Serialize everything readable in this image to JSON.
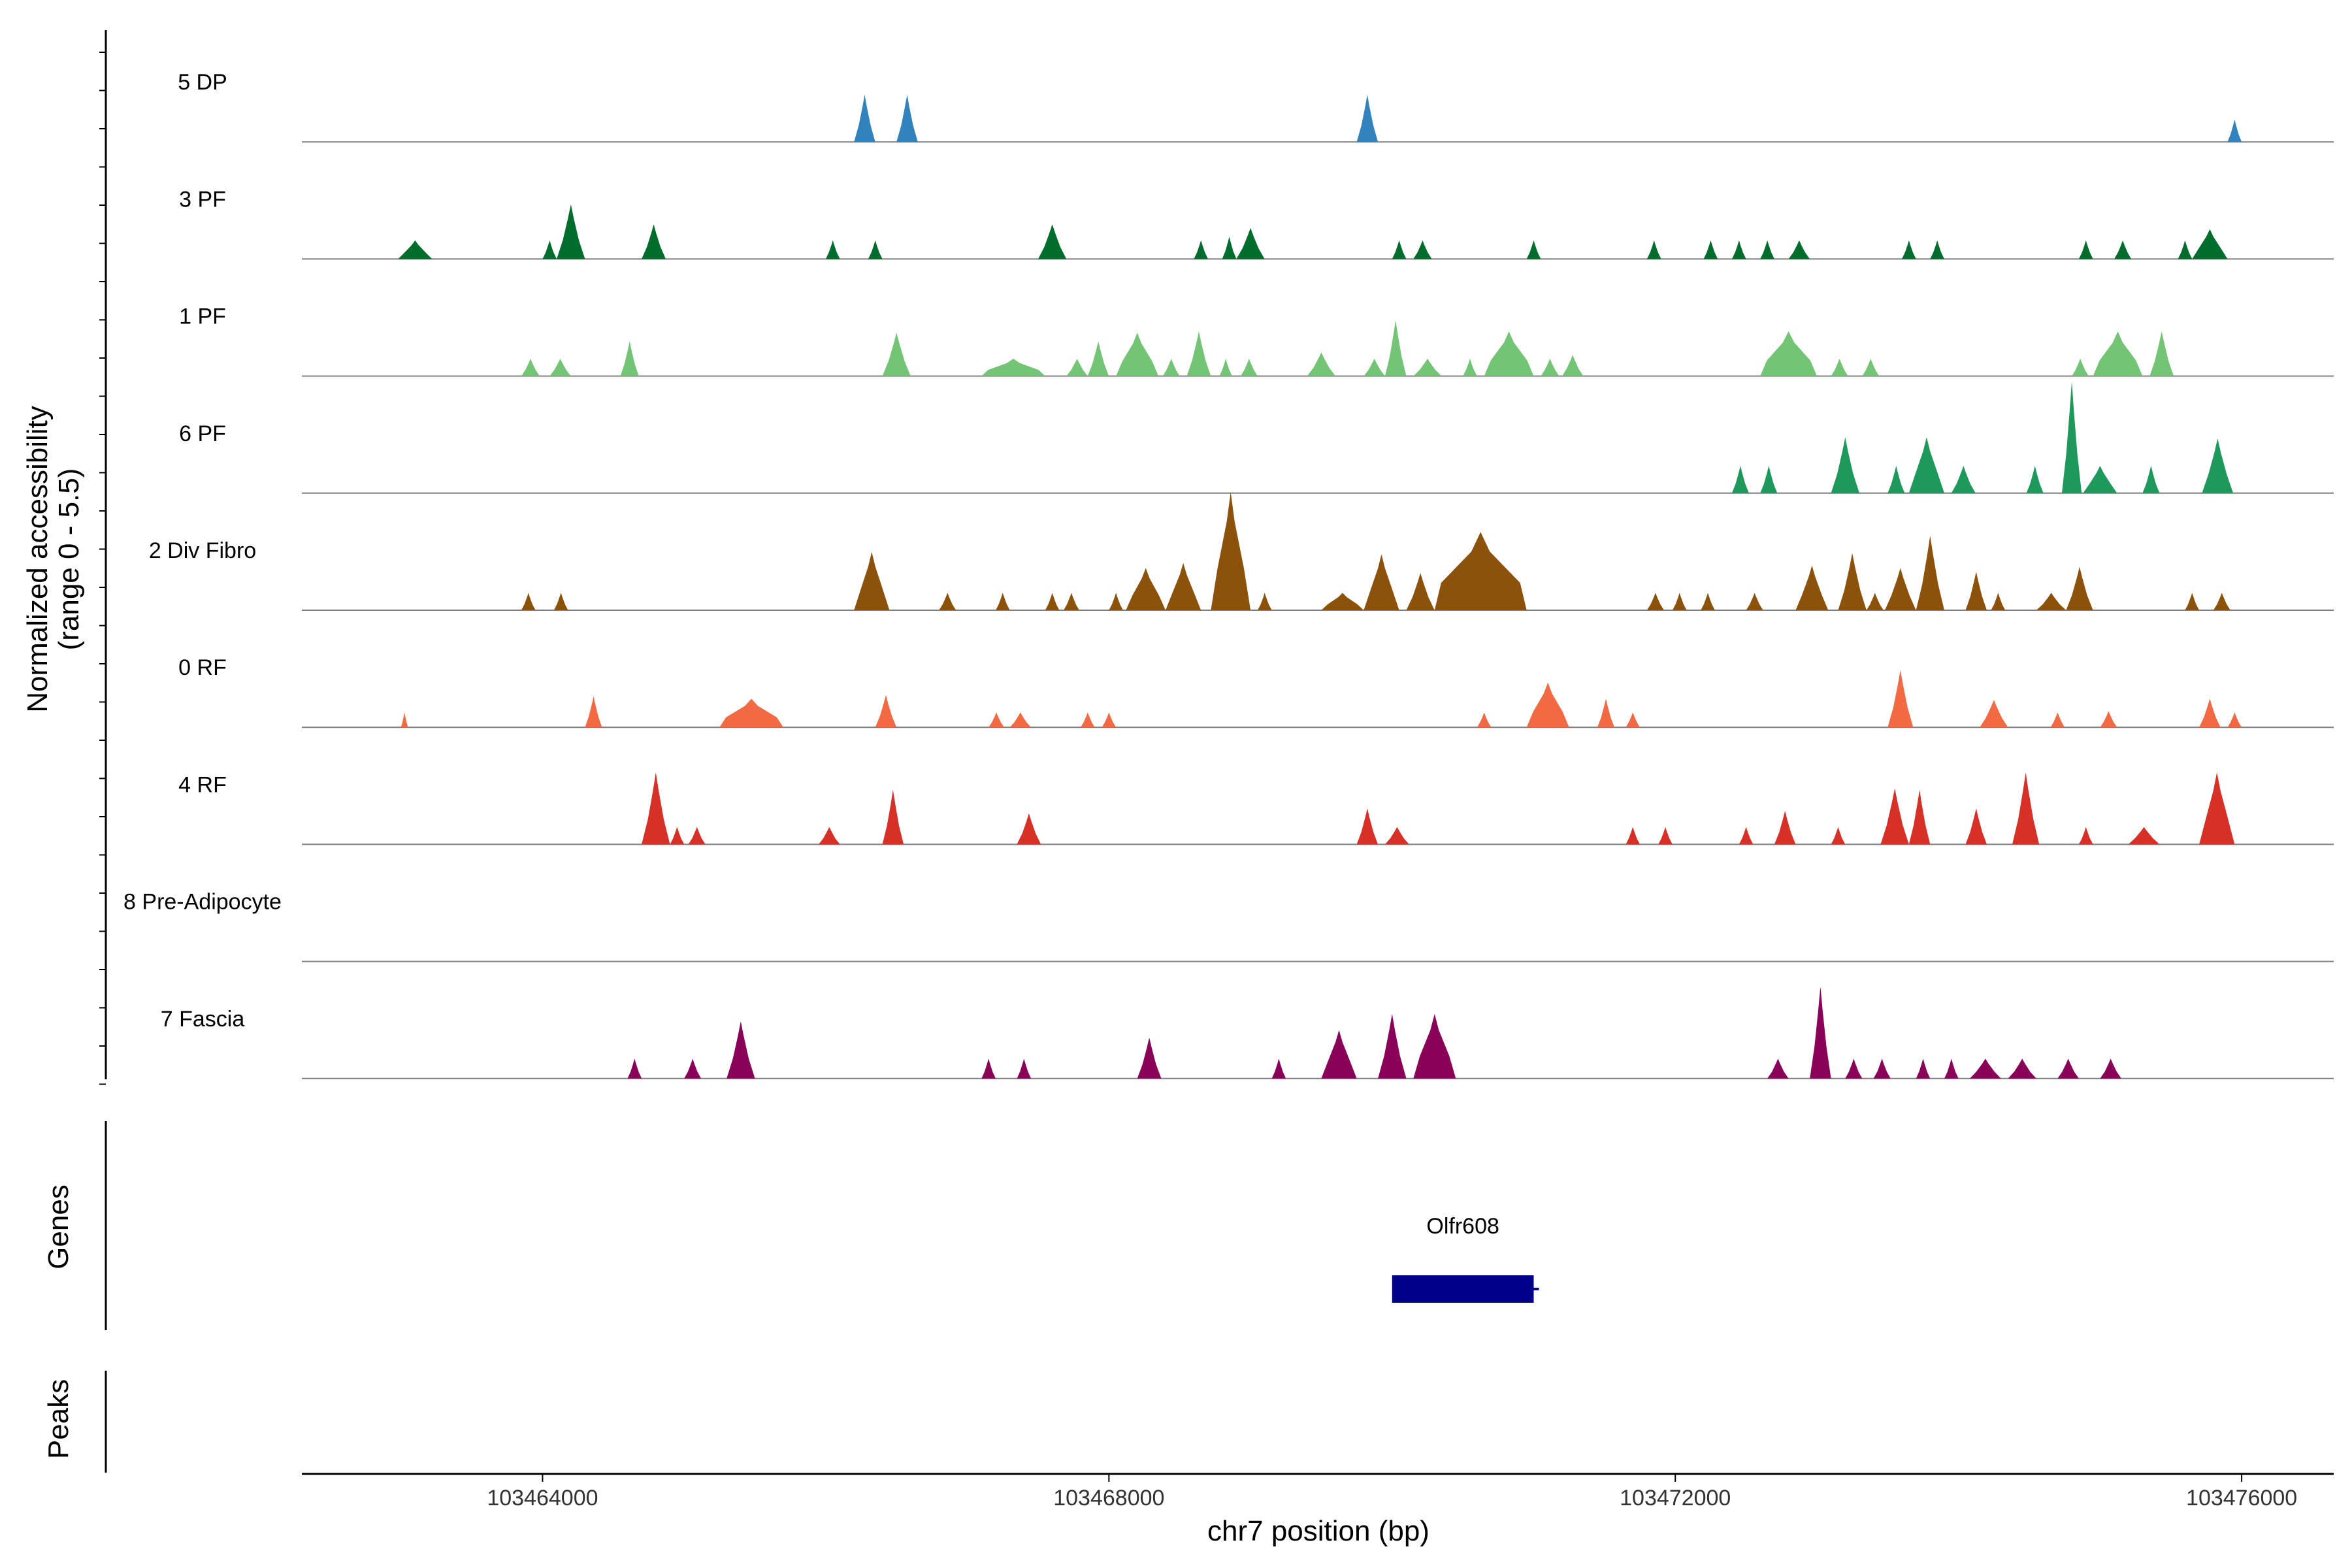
{
  "chart_data": {
    "type": "area",
    "title": "",
    "ylabel_line1": "Normalized accessibility",
    "ylabel_line2": "(range 0 - 5.5)",
    "ylim": [
      0,
      5.5
    ],
    "xlabel": "chr7 position (bp)",
    "xlim": [
      103462300,
      103476650
    ],
    "xticks": [
      {
        "value": 103464000,
        "label": "103464000"
      },
      {
        "value": 103468000,
        "label": "103468000"
      },
      {
        "value": 103472000,
        "label": "103472000"
      },
      {
        "value": 103476000,
        "label": "103476000"
      }
    ],
    "tracks": [
      {
        "name": "5 DP",
        "color": "#3282bd",
        "peaks": [
          [
            103466200,
            103466350,
            3.8
          ],
          [
            103466500,
            103466650,
            3.8
          ],
          [
            103469750,
            103469900,
            3.8
          ],
          [
            103475900,
            103476000,
            1.8
          ]
        ]
      },
      {
        "name": "3 PF",
        "color": "#006d2c",
        "peaks": [
          [
            103462980,
            103463220,
            1.5
          ],
          [
            103464000,
            103464100,
            1.5
          ],
          [
            103464100,
            103464300,
            4.4
          ],
          [
            103464700,
            103464870,
            2.8
          ],
          [
            103466000,
            103466100,
            1.5
          ],
          [
            103466300,
            103466400,
            1.5
          ],
          [
            103467500,
            103467700,
            2.8
          ],
          [
            103468600,
            103468700,
            1.5
          ],
          [
            103468800,
            103468900,
            1.8
          ],
          [
            103468900,
            103469100,
            2.5
          ],
          [
            103470000,
            103470100,
            1.5
          ],
          [
            103470150,
            103470280,
            1.5
          ],
          [
            103470950,
            103471050,
            1.5
          ],
          [
            103471800,
            103471900,
            1.5
          ],
          [
            103472200,
            103472300,
            1.5
          ],
          [
            103472400,
            103472500,
            1.5
          ],
          [
            103472600,
            103472700,
            1.5
          ],
          [
            103472800,
            103472950,
            1.5
          ],
          [
            103473600,
            103473700,
            1.5
          ],
          [
            103473800,
            103473900,
            1.5
          ],
          [
            103474850,
            103474950,
            1.5
          ],
          [
            103475100,
            103475220,
            1.5
          ],
          [
            103475550,
            103475650,
            1.5
          ],
          [
            103475650,
            103475900,
            2.4
          ]
        ]
      },
      {
        "name": "1 PF",
        "color": "#74c476",
        "peaks": [
          [
            103463850,
            103463980,
            1.4
          ],
          [
            103464050,
            103464200,
            1.4
          ],
          [
            103464550,
            103464680,
            2.8
          ],
          [
            103466400,
            103466600,
            3.5
          ],
          [
            103467100,
            103467550,
            1.4
          ],
          [
            103467700,
            103467850,
            1.4
          ],
          [
            103467850,
            103468000,
            2.8
          ],
          [
            103468050,
            103468350,
            3.5
          ],
          [
            103468380,
            103468500,
            1.4
          ],
          [
            103468550,
            103468720,
            3.6
          ],
          [
            103468780,
            103468870,
            1.4
          ],
          [
            103468930,
            103469050,
            1.4
          ],
          [
            103469400,
            103469600,
            1.9
          ],
          [
            103469800,
            103469950,
            1.4
          ],
          [
            103469950,
            103470100,
            4.5
          ],
          [
            103470150,
            103470350,
            1.4
          ],
          [
            103470500,
            103470600,
            1.4
          ],
          [
            103470650,
            103471000,
            3.6
          ],
          [
            103471050,
            103471180,
            1.4
          ],
          [
            103471200,
            103471350,
            1.7
          ],
          [
            103472600,
            103473000,
            3.6
          ],
          [
            103473100,
            103473220,
            1.4
          ],
          [
            103473320,
            103473440,
            1.4
          ],
          [
            103474800,
            103474920,
            1.4
          ],
          [
            103474950,
            103475300,
            3.6
          ],
          [
            103475350,
            103475520,
            3.6
          ]
        ]
      },
      {
        "name": "6 PF",
        "color": "#1d9a5b",
        "peaks": [
          [
            103472400,
            103472520,
            2.2
          ],
          [
            103472600,
            103472720,
            2.2
          ],
          [
            103473100,
            103473300,
            4.5
          ],
          [
            103473500,
            103473620,
            2.2
          ],
          [
            103473650,
            103473900,
            4.5
          ],
          [
            103473950,
            103474120,
            2.2
          ],
          [
            103474480,
            103474600,
            2.2
          ],
          [
            103474730,
            103474870,
            9.0
          ],
          [
            103474880,
            103475120,
            2.2
          ],
          [
            103475300,
            103475420,
            2.2
          ],
          [
            103475720,
            103475940,
            4.4
          ]
        ]
      },
      {
        "name": "2 Div Fibro",
        "color": "#8c510a",
        "peaks": [
          [
            103463850,
            103463950,
            1.4
          ],
          [
            103464080,
            103464180,
            1.4
          ],
          [
            103466200,
            103466450,
            4.7
          ],
          [
            103466800,
            103466920,
            1.4
          ],
          [
            103467200,
            103467300,
            1.4
          ],
          [
            103467550,
            103467650,
            1.4
          ],
          [
            103467680,
            103467790,
            1.4
          ],
          [
            103468000,
            103468100,
            1.4
          ],
          [
            103468120,
            103468400,
            3.4
          ],
          [
            103468400,
            103468650,
            3.8
          ],
          [
            103468720,
            103469000,
            9.5
          ],
          [
            103469050,
            103469150,
            1.4
          ],
          [
            103469500,
            103469800,
            1.4
          ],
          [
            103469800,
            103470050,
            4.5
          ],
          [
            103470100,
            103470300,
            3.0
          ],
          [
            103470300,
            103470950,
            6.3
          ],
          [
            103471800,
            103471920,
            1.4
          ],
          [
            103471980,
            103472080,
            1.4
          ],
          [
            103472180,
            103472280,
            1.4
          ],
          [
            103472500,
            103472620,
            1.4
          ],
          [
            103472850,
            103473080,
            3.6
          ],
          [
            103473150,
            103473350,
            4.6
          ],
          [
            103473350,
            103473470,
            1.4
          ],
          [
            103473480,
            103473700,
            3.4
          ],
          [
            103473700,
            103473900,
            6.0
          ],
          [
            103474050,
            103474200,
            3.1
          ],
          [
            103474230,
            103474330,
            1.4
          ],
          [
            103474550,
            103474760,
            1.4
          ],
          [
            103474760,
            103474950,
            3.5
          ],
          [
            103475600,
            103475700,
            1.4
          ],
          [
            103475800,
            103475920,
            1.4
          ]
        ]
      },
      {
        "name": "0 RF",
        "color": "#f16a43",
        "peaks": [
          [
            103463000,
            103463050,
            1.2
          ],
          [
            103464300,
            103464420,
            2.5
          ],
          [
            103465250,
            103465700,
            2.3
          ],
          [
            103466350,
            103466500,
            2.6
          ],
          [
            103467150,
            103467260,
            1.2
          ],
          [
            103467300,
            103467450,
            1.2
          ],
          [
            103467800,
            103467900,
            1.2
          ],
          [
            103467950,
            103468050,
            1.2
          ],
          [
            103470600,
            103470700,
            1.2
          ],
          [
            103470950,
            103471250,
            3.6
          ],
          [
            103471450,
            103471570,
            2.3
          ],
          [
            103471650,
            103471750,
            1.2
          ],
          [
            103473500,
            103473680,
            4.6
          ],
          [
            103474150,
            103474350,
            2.2
          ],
          [
            103474650,
            103474750,
            1.2
          ],
          [
            103475000,
            103475120,
            1.3
          ],
          [
            103475700,
            103475850,
            2.3
          ],
          [
            103475900,
            103476000,
            1.2
          ]
        ]
      },
      {
        "name": "4 RF",
        "color": "#d73027",
        "peaks": [
          [
            103464700,
            103464900,
            5.8
          ],
          [
            103464900,
            103465000,
            1.4
          ],
          [
            103465030,
            103465150,
            1.4
          ],
          [
            103465950,
            103466100,
            1.4
          ],
          [
            103466400,
            103466550,
            4.4
          ],
          [
            103467350,
            103467520,
            2.5
          ],
          [
            103469750,
            103469900,
            2.9
          ],
          [
            103469950,
            103470120,
            1.4
          ],
          [
            103471650,
            103471750,
            1.4
          ],
          [
            103471880,
            103471980,
            1.4
          ],
          [
            103472450,
            103472550,
            1.4
          ],
          [
            103472700,
            103472850,
            2.7
          ],
          [
            103473100,
            103473200,
            1.4
          ],
          [
            103473450,
            103473650,
            4.5
          ],
          [
            103473650,
            103473800,
            4.4
          ],
          [
            103474050,
            103474200,
            2.9
          ],
          [
            103474380,
            103474570,
            5.8
          ],
          [
            103474850,
            103474950,
            1.4
          ],
          [
            103475200,
            103475420,
            1.4
          ],
          [
            103475700,
            103475950,
            5.8
          ]
        ]
      },
      {
        "name": "8 Pre-Adipocyte",
        "color": "#000000",
        "peaks": []
      },
      {
        "name": "7 Fascia",
        "color": "#8a0158",
        "peaks": [
          [
            103464600,
            103464700,
            1.6
          ],
          [
            103465000,
            103465120,
            1.6
          ],
          [
            103465300,
            103465500,
            4.6
          ],
          [
            103467100,
            103467200,
            1.6
          ],
          [
            103467350,
            103467450,
            1.6
          ],
          [
            103468200,
            103468370,
            3.3
          ],
          [
            103469150,
            103469250,
            1.6
          ],
          [
            103469500,
            103469750,
            3.9
          ],
          [
            103469900,
            103470100,
            5.2
          ],
          [
            103470150,
            103470450,
            5.2
          ],
          [
            103472650,
            103472800,
            1.6
          ],
          [
            103472950,
            103473100,
            7.4
          ],
          [
            103473200,
            103473320,
            1.6
          ],
          [
            103473400,
            103473520,
            1.6
          ],
          [
            103473700,
            103473800,
            1.6
          ],
          [
            103473900,
            103474000,
            1.6
          ],
          [
            103474080,
            103474300,
            1.6
          ],
          [
            103474350,
            103474550,
            1.6
          ],
          [
            103474700,
            103474850,
            1.6
          ],
          [
            103475000,
            103475150,
            1.6
          ]
        ]
      }
    ],
    "genes": {
      "panel_label": "Genes",
      "items": [
        {
          "name": "Olfr608",
          "start": 103470000,
          "end": 103471000,
          "color": "#00008b"
        }
      ]
    },
    "peaks_panel": {
      "panel_label": "Peaks",
      "items": []
    },
    "baseline_color": "#7f7f7f",
    "axis_color": "#000000"
  }
}
